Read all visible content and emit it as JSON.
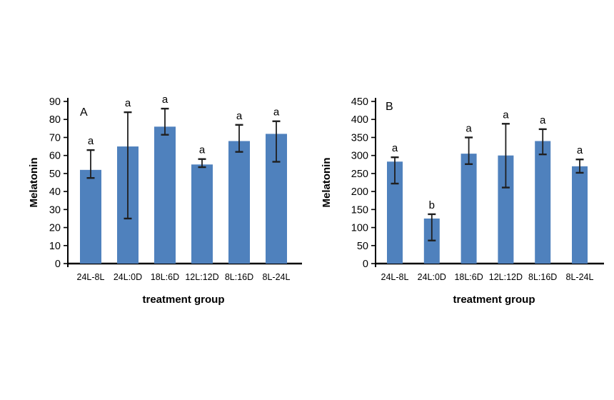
{
  "figure": {
    "background": "#ffffff",
    "bar_color": "#4f81bd",
    "error_bar_color": "#1f1f1f",
    "axis_color": "#000000"
  },
  "chart_data": [
    {
      "type": "bar",
      "panel_label": "A",
      "title": "",
      "ylabel": "Melatonin",
      "xlabel": "treatment group",
      "ylim": [
        0,
        90
      ],
      "yticks": [
        0,
        10,
        20,
        30,
        40,
        50,
        60,
        70,
        80,
        90
      ],
      "categories": [
        "24L-8L",
        "24L:0D",
        "18L:6D",
        "12L:12D",
        "8L:16D",
        "8L-24L"
      ],
      "values": [
        52,
        65,
        76,
        55,
        68,
        72
      ],
      "error_low": [
        47.5,
        25,
        71.5,
        53.5,
        62,
        56.5
      ],
      "error_high": [
        63,
        84,
        86,
        58,
        77,
        79
      ],
      "sig_letters": [
        "a",
        "a",
        "a",
        "a",
        "a",
        "a"
      ],
      "grid": false,
      "legend": "none"
    },
    {
      "type": "bar",
      "panel_label": "B",
      "title": "",
      "ylabel": "Melatonin",
      "xlabel": "treatment group",
      "ylim": [
        0,
        450
      ],
      "yticks": [
        0,
        50,
        100,
        150,
        200,
        250,
        300,
        350,
        400,
        450
      ],
      "categories": [
        "24L-8L",
        "24L:0D",
        "18L:6D",
        "12L:12D",
        "8L:16D",
        "8L-24L"
      ],
      "values": [
        283,
        125,
        305,
        300,
        340,
        270
      ],
      "error_low": [
        222,
        64,
        276,
        211,
        303,
        252
      ],
      "error_high": [
        295,
        137,
        350,
        388,
        373,
        289
      ],
      "sig_letters": [
        "a",
        "b",
        "a",
        "a",
        "a",
        "a"
      ],
      "grid": false,
      "legend": "none"
    }
  ]
}
